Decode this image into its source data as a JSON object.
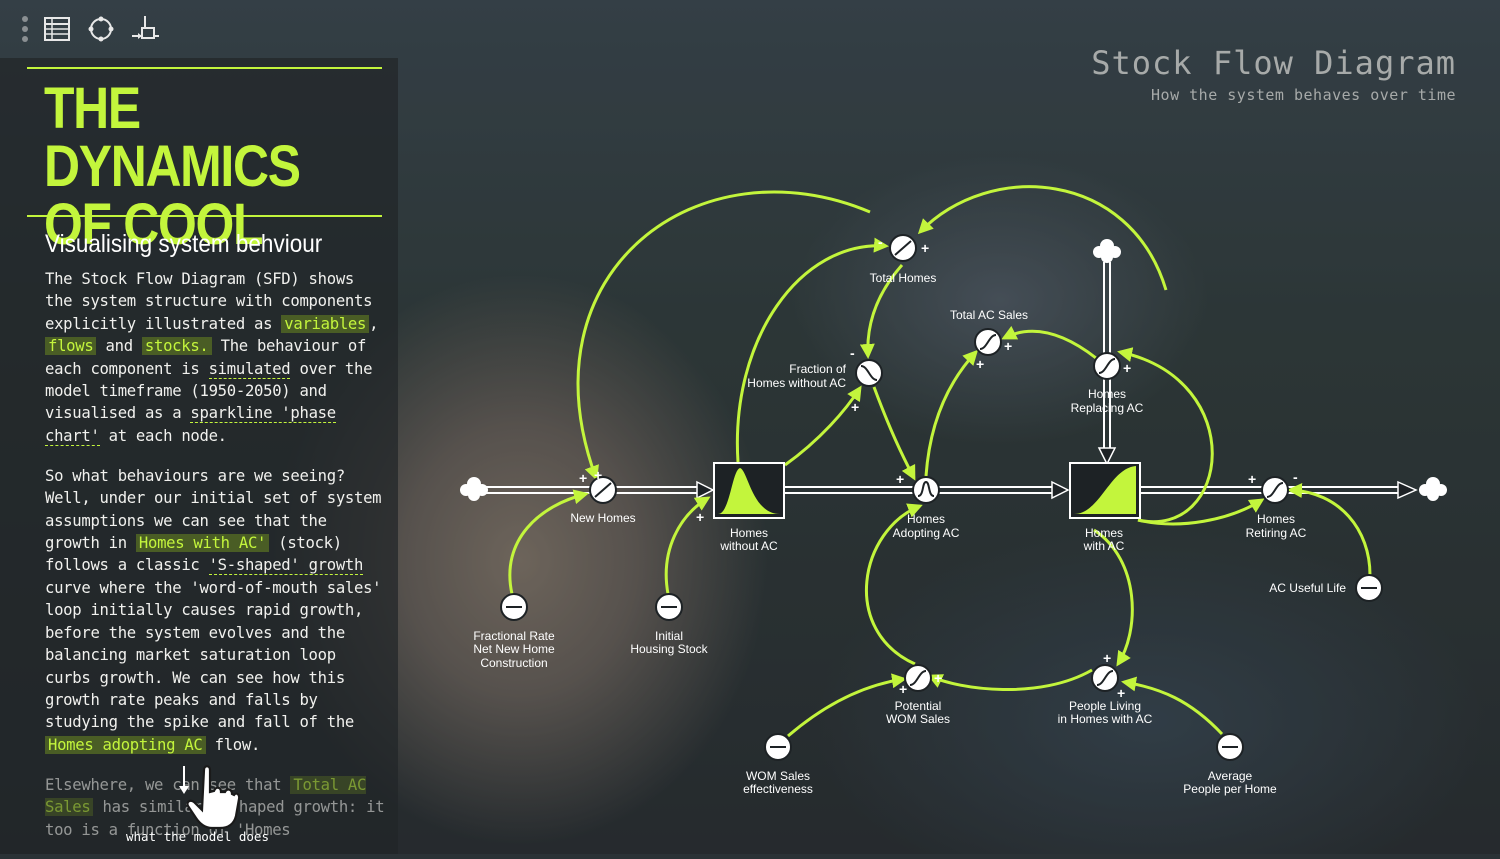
{
  "toolbar": {
    "icons": [
      "drag-handle",
      "table-icon",
      "cycle-icon",
      "flow-icon"
    ]
  },
  "sidebar": {
    "title_line1": "THE DYNAMICS",
    "title_line2": "OF COOL",
    "subtitle": "Visualising system behviour",
    "p1": {
      "t1": "The Stock Flow Diagram (SFD) shows the system structure with components explicitly illustrated as ",
      "hl_variables": "variables",
      "t2": ", ",
      "hl_flows": "flows",
      "t3": " and ",
      "hl_stocks": "stocks.",
      "t4": " The behaviour of each component is ",
      "ul_simulated": "simulated",
      "t5": " over the model timeframe (1950-2050) and visualised as a ",
      "ul_sparkline": "sparkline 'phase chart'",
      "t6": " at each node."
    },
    "p2": {
      "t1": "So what behaviours are we seeing? Well, under our initial set of system assumptions we can see that the growth in ",
      "hl_homes_with_ac": "Homes with AC'",
      "t2": " (stock) follows a classic ",
      "ul_sshaped": "'S-shaped' growth",
      "t3": " curve where the 'word-of-mouth sales' loop initially causes rapid growth, before the system evolves and the balancing market saturation loop curbs growth. We can see how this growth rate peaks and falls by studying the spike and fall of the ",
      "hl_homes_adopting": "Homes adopting AC",
      "t4": " flow."
    },
    "p3": {
      "t1": "Elsewhere, we can see that ",
      "hl_total_ac_sales": "Total AC Sales",
      "t2": " has similar S-shaped growth: it too is a function of 'Homes"
    },
    "hover_tip": "what the model does"
  },
  "header": {
    "title": "Stock Flow Diagram",
    "subtitle": "How the system behaves over time"
  },
  "diagram": {
    "accent": "#c3f53c",
    "stocks": {
      "homes_without_ac": [
        "Homes",
        "without AC"
      ],
      "homes_with_ac": [
        "Homes",
        "with AC"
      ]
    },
    "flows": {
      "new_homes": [
        "New Homes"
      ],
      "homes_adopting_ac": [
        "Homes",
        "Adopting AC"
      ],
      "homes_retiring_ac": [
        "Homes",
        "Retiring AC"
      ],
      "homes_replacing_ac": [
        "Homes",
        "Replacing AC"
      ]
    },
    "variables": {
      "total_homes": [
        "Total Homes"
      ],
      "total_ac_sales": [
        "Total AC Sales"
      ],
      "fraction_without_ac": [
        "Fraction of",
        "Homes without AC"
      ],
      "fractional_rate": [
        "Fractional Rate",
        "Net New Home",
        "Construction"
      ],
      "initial_housing_stock": [
        "Initial",
        "Housing Stock"
      ],
      "ac_useful_life": [
        "AC Useful Life"
      ],
      "potential_wom_sales": [
        "Potential",
        "WOM Sales"
      ],
      "people_living": [
        "People Living",
        "in Homes with AC"
      ],
      "wom_sales_effectiveness": [
        "WOM Sales",
        "effectiveness"
      ],
      "average_people_per_home": [
        "Average",
        "People per Home"
      ]
    },
    "signs": {
      "plus": "+",
      "minus": "-"
    }
  }
}
